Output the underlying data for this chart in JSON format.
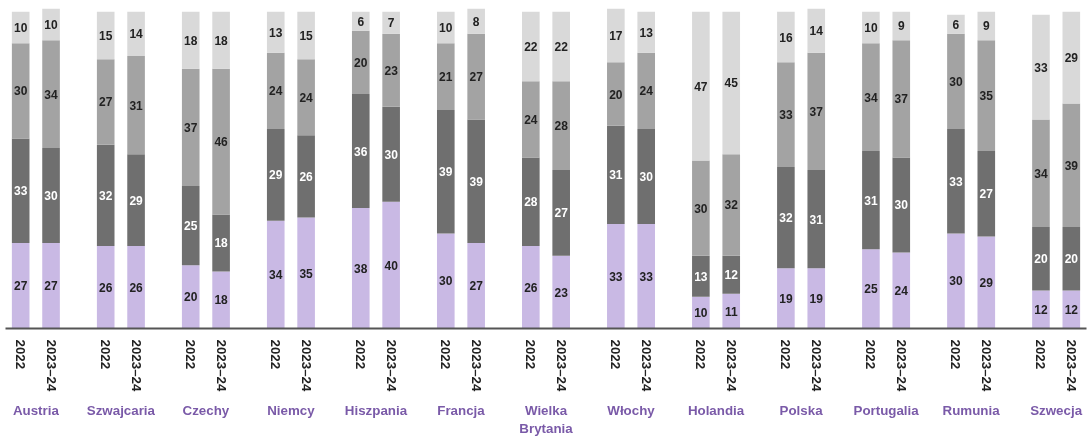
{
  "chart_data": {
    "type": "bar",
    "stacked": true,
    "data_labels": true,
    "grid": false,
    "categories": [
      "2022",
      "2023–24",
      "2022",
      "2023–24",
      "2022",
      "2023–24",
      "2022",
      "2023–24",
      "2022",
      "2023–24",
      "2022",
      "2023–24",
      "2022",
      "2023–24",
      "2022",
      "2023–24",
      "2022",
      "2023–24",
      "2022",
      "2023–24",
      "2022",
      "2023–24",
      "2022",
      "2023–24",
      "2022",
      "2023–24"
    ],
    "annotations": [
      "Austria",
      "Szwajcaria",
      "Czechy",
      "Niemcy",
      "Hiszpania",
      "Francja",
      "Wielka Brytania",
      "Włochy",
      "Holandia",
      "Polska",
      "Portugalia",
      "Rumunia",
      "Szwecja"
    ],
    "series": [
      {
        "color": "#c9b9e4",
        "values": [
          27,
          27,
          26,
          26,
          20,
          18,
          34,
          35,
          38,
          40,
          30,
          27,
          26,
          23,
          33,
          33,
          10,
          11,
          19,
          19,
          25,
          24,
          30,
          29,
          12,
          12
        ]
      },
      {
        "color": "#6f6f6f",
        "values": [
          33,
          30,
          32,
          29,
          25,
          18,
          29,
          26,
          36,
          30,
          39,
          39,
          28,
          27,
          31,
          30,
          13,
          12,
          32,
          31,
          31,
          30,
          33,
          27,
          20,
          20
        ]
      },
      {
        "color": "#a3a3a3",
        "values": [
          30,
          34,
          27,
          31,
          37,
          46,
          24,
          24,
          20,
          23,
          21,
          27,
          24,
          28,
          20,
          24,
          30,
          32,
          33,
          37,
          34,
          37,
          30,
          35,
          34,
          39
        ]
      },
      {
        "color": "#d9d9d9",
        "values": [
          10,
          10,
          15,
          14,
          18,
          18,
          13,
          15,
          6,
          7,
          10,
          8,
          22,
          22,
          17,
          13,
          47,
          45,
          16,
          14,
          10,
          9,
          6,
          9,
          33,
          29
        ]
      }
    ]
  }
}
